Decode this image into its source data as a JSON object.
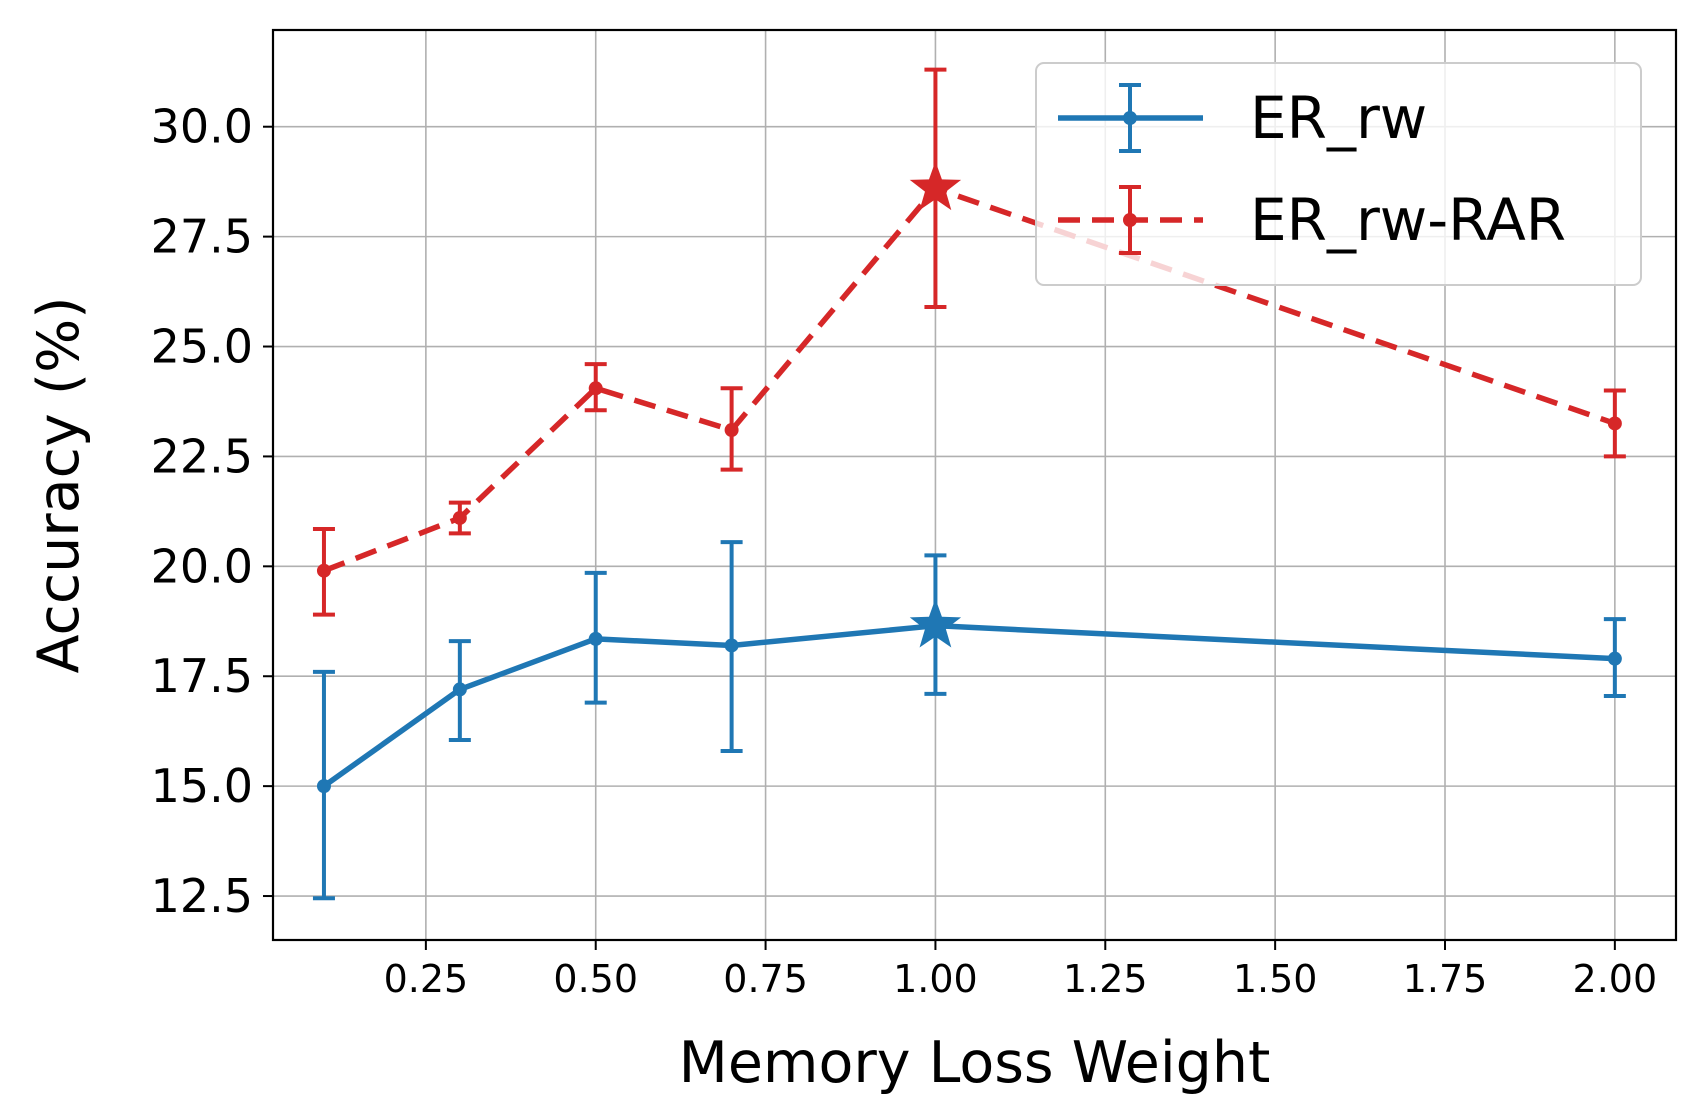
{
  "chart_data": {
    "type": "line",
    "xlabel": "Memory Loss Weight",
    "ylabel": "Accuracy (%)",
    "xlim": [
      0.025,
      2.09
    ],
    "ylim": [
      11.5,
      32.2
    ],
    "x_ticks": [
      0.25,
      0.5,
      0.75,
      1.0,
      1.25,
      1.5,
      1.75,
      2.0
    ],
    "x_tick_labels": [
      "0.25",
      "0.50",
      "0.75",
      "1.00",
      "1.25",
      "1.50",
      "1.75",
      "2.00"
    ],
    "y_ticks": [
      12.5,
      15.0,
      17.5,
      20.0,
      22.5,
      25.0,
      27.5,
      30.0
    ],
    "y_tick_labels": [
      "12.5",
      "15.0",
      "17.5",
      "20.0",
      "22.5",
      "25.0",
      "27.5",
      "30.0"
    ],
    "grid": true,
    "legend_position": "top-right",
    "series": [
      {
        "name": "ER_rw",
        "color": "#1f77b4",
        "line_style": "solid",
        "x": [
          0.1,
          0.3,
          0.5,
          0.7,
          1.0,
          2.0
        ],
        "y": [
          15.0,
          17.2,
          18.35,
          18.2,
          18.65,
          17.9
        ],
        "err_low": [
          12.45,
          16.05,
          16.9,
          15.8,
          17.1,
          17.05
        ],
        "err_high": [
          17.6,
          18.3,
          19.85,
          20.55,
          20.25,
          18.8
        ],
        "highlight_x": 1.0
      },
      {
        "name": "ER_rw-RAR",
        "color": "#d62728",
        "line_style": "dashed",
        "x": [
          0.1,
          0.3,
          0.5,
          0.7,
          1.0,
          2.0
        ],
        "y": [
          19.9,
          21.1,
          24.05,
          23.1,
          28.6,
          23.25
        ],
        "err_low": [
          18.9,
          20.75,
          23.55,
          22.2,
          25.9,
          22.5
        ],
        "err_high": [
          20.85,
          21.45,
          24.6,
          24.05,
          31.3,
          24.0
        ],
        "highlight_x": 1.0
      }
    ]
  }
}
